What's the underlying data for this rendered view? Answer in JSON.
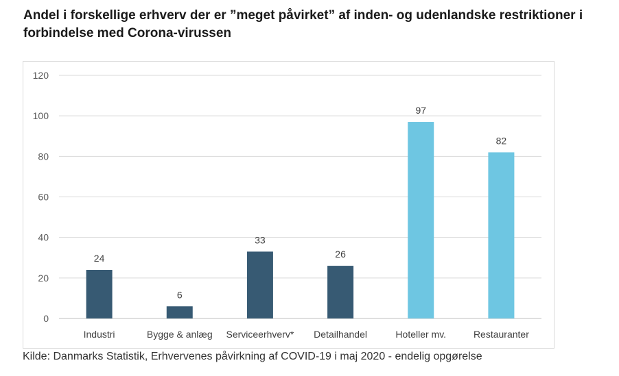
{
  "title": "Andel i forskellige erhverv der er ”meget påvirket” af inden- og udenlandske restriktioner i forbindelse med Corona-virussen",
  "source": "Kilde: Danmarks Statistik, Erhvervenes påvirkning af COVID-19 i maj 2020 - endelig opgørelse",
  "chart_data": {
    "type": "bar",
    "title": "Andel i forskellige erhverv der er ”meget påvirket” af inden- og udenlandske restriktioner i forbindelse med Corona-virussen",
    "xlabel": "",
    "ylabel": "",
    "categories": [
      "Industri",
      "Bygge & anlæg",
      "Serviceerhverv*",
      "Detailhandel",
      "Hoteller mv.",
      "Restauranter"
    ],
    "values": [
      24,
      6,
      33,
      26,
      97,
      82
    ],
    "bar_colors": [
      "#375a73",
      "#375a73",
      "#375a73",
      "#375a73",
      "#6ec6e2",
      "#6ec6e2"
    ],
    "ylim": [
      0,
      120
    ],
    "yticks": [
      0,
      20,
      40,
      60,
      80,
      100,
      120
    ],
    "grid": true,
    "legend": "none"
  }
}
